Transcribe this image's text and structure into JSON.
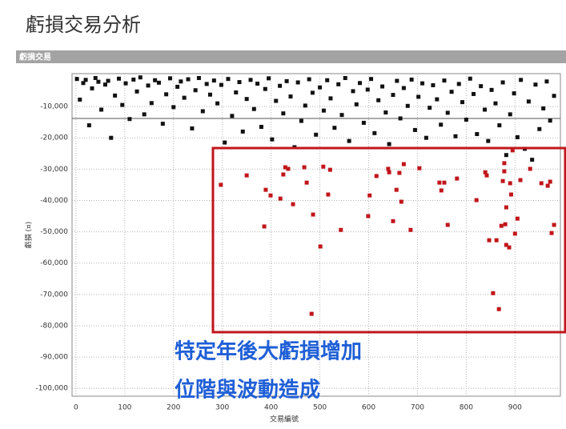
{
  "page": {
    "title": "虧損交易分析",
    "panel_title": "虧損交易"
  },
  "chart_data": {
    "type": "scatter",
    "x_label": "交易編號",
    "y_label": "虧損 (¤)",
    "xlim": [
      -8,
      993
    ],
    "ylim": [
      -102500,
      500
    ],
    "xticks": [
      0,
      100,
      200,
      300,
      400,
      500,
      600,
      700,
      800,
      900
    ],
    "yticks": [
      {
        "value": -10000,
        "label": "-10,000"
      },
      {
        "value": -20000,
        "label": "-20,000"
      },
      {
        "value": -30000,
        "label": "-30,000"
      },
      {
        "value": -40000,
        "label": "-40,000"
      },
      {
        "value": -50000,
        "label": "-50,000"
      },
      {
        "value": -60000,
        "label": "-60,000"
      },
      {
        "value": -70000,
        "label": "-70,000"
      },
      {
        "value": -80000,
        "label": "-80,000"
      },
      {
        "value": -90000,
        "label": "-90,000"
      },
      {
        "value": -100000,
        "label": "-100,000"
      }
    ],
    "grid": true,
    "reference_line": -13800,
    "series": [
      {
        "color": "#111111",
        "x": [
          2,
          8,
          15,
          20,
          27,
          33,
          40,
          46,
          52,
          60,
          66,
          72,
          80,
          88,
          95,
          102,
          110,
          118,
          125,
          132,
          140,
          148,
          155,
          162,
          170,
          178,
          185,
          193,
          200,
          208,
          215,
          222,
          230,
          238,
          245,
          252,
          260,
          268,
          275,
          283,
          290,
          298,
          305,
          312,
          320,
          328,
          335,
          342,
          350,
          358,
          365,
          372,
          380,
          388,
          395,
          402,
          410,
          418,
          425,
          432,
          440,
          448,
          455,
          462,
          470,
          478,
          485,
          492,
          500,
          508,
          515,
          522,
          530,
          538,
          545,
          552,
          560,
          568,
          575,
          582,
          590,
          598,
          605,
          612,
          620,
          628,
          635,
          642,
          650,
          658,
          665,
          672,
          680,
          688,
          695,
          702,
          710,
          718,
          725,
          732,
          740,
          748,
          755,
          762,
          770,
          778,
          785,
          792,
          800,
          808,
          815,
          822,
          830,
          838,
          845,
          852,
          860,
          868,
          875,
          882,
          890,
          898,
          905,
          912,
          920,
          928,
          935,
          942,
          950,
          958,
          965,
          972,
          980
        ],
        "values": [
          -1200,
          -7800,
          -2500,
          -1500,
          -16000,
          -4200,
          -900,
          -2100,
          -11000,
          -3000,
          -1800,
          -20000,
          -6500,
          -1100,
          -9500,
          -2600,
          -14000,
          -1400,
          -5200,
          -700,
          -12500,
          -3300,
          -8900,
          -1600,
          -2400,
          -15500,
          -6100,
          -1000,
          -10200,
          -3700,
          -2000,
          -7200,
          -1300,
          -17000,
          -4800,
          -900,
          -11500,
          -2800,
          -6200,
          -1700,
          -9000,
          -3100,
          -21500,
          -1200,
          -13000,
          -5500,
          -2200,
          -18000,
          -7600,
          -1500,
          -10800,
          -2700,
          -16500,
          -4400,
          -1000,
          -20500,
          -8200,
          -3400,
          -12200,
          -1900,
          -6800,
          -23000,
          -2300,
          -14600,
          -9700,
          -1300,
          -5600,
          -19000,
          -3900,
          -11300,
          -1600,
          -7400,
          -16800,
          -2900,
          -12700,
          -900,
          -21000,
          -5100,
          -9300,
          -2500,
          -15200,
          -4600,
          -1200,
          -18500,
          -8000,
          -3600,
          -11900,
          -22000,
          -6300,
          -1800,
          -13800,
          -4100,
          -9800,
          -1400,
          -17500,
          -6900,
          -2600,
          -20000,
          -10400,
          -3200,
          -7700,
          -15800,
          -1700,
          -12000,
          -5300,
          -19500,
          -2800,
          -8600,
          -14200,
          -1100,
          -6000,
          -18800,
          -3500,
          -11000,
          -21000,
          -4700,
          -9000,
          -16000,
          -2300,
          -25500,
          -12500,
          -5800,
          -19800,
          -1500,
          -23500,
          -8400,
          -27000,
          -3000,
          -17200,
          -10600,
          -2000,
          -14500,
          -6600
        ]
      },
      {
        "color": "#c0161b",
        "x": [
          297,
          350,
          386,
          389,
          399,
          419,
          425,
          429,
          435,
          445,
          468,
          473,
          483,
          486,
          501,
          507,
          517,
          521,
          543,
          599,
          602,
          616,
          640,
          642,
          650,
          657,
          663,
          667,
          672,
          686,
          704,
          745,
          749,
          755,
          762,
          781,
          821,
          839,
          842,
          847,
          855,
          862,
          867,
          872,
          875,
          878,
          878,
          880,
          882,
          888,
          882,
          890,
          895,
          900,
          905,
          911,
          931,
          954,
          967,
          975,
          980,
          972,
          892
        ],
        "values": [
          -35000,
          -32000,
          -48300,
          -36600,
          -38400,
          -39400,
          -31700,
          -29400,
          -29900,
          -41200,
          -29400,
          -34300,
          -76200,
          -44500,
          -54700,
          -29200,
          -38100,
          -30200,
          -49400,
          -45000,
          -38400,
          -32200,
          -29900,
          -31000,
          -46600,
          -36600,
          -31200,
          -40400,
          -28400,
          -49400,
          -29700,
          -34300,
          -36800,
          -34300,
          -47800,
          -33000,
          -39900,
          -31000,
          -32000,
          -52700,
          -69600,
          -52700,
          -74700,
          -48100,
          -33800,
          -30700,
          -28100,
          -47600,
          -54200,
          -55000,
          -42200,
          -34500,
          -24000,
          -50600,
          -45800,
          -33500,
          -29900,
          -34500,
          -35300,
          -50400,
          -47800,
          -34000,
          -38100
        ]
      }
    ]
  },
  "annotations": [
    "特定年後大虧損增加",
    "位階與波動造成"
  ]
}
